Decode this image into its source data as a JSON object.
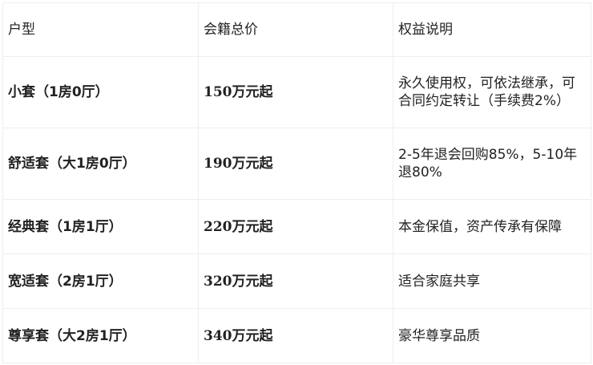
{
  "headers": [
    "户型",
    "会籍总价",
    "权益说明"
  ],
  "rows": [
    {
      "type": "小套（1房0厅）",
      "price": "150万元起",
      "desc": "永久使用权，可依法继承，可合同约定转让（手续费2%）"
    },
    {
      "type": "舒适套（大1房0厅）",
      "price": "190万元起",
      "desc": "2-5年退会回购85%，5-10年退80%"
    },
    {
      "type": "经典套（1房1厅）",
      "price": "220万元起",
      "desc": "本金保值，资产传承有保障"
    },
    {
      "type": "宽适套（2房1厅）",
      "price": "320万元起",
      "desc": "适合家庭共享"
    },
    {
      "type": "尊享套（大2房1厅）",
      "price": "340万元起",
      "desc": "豪华尊享品质"
    }
  ]
}
